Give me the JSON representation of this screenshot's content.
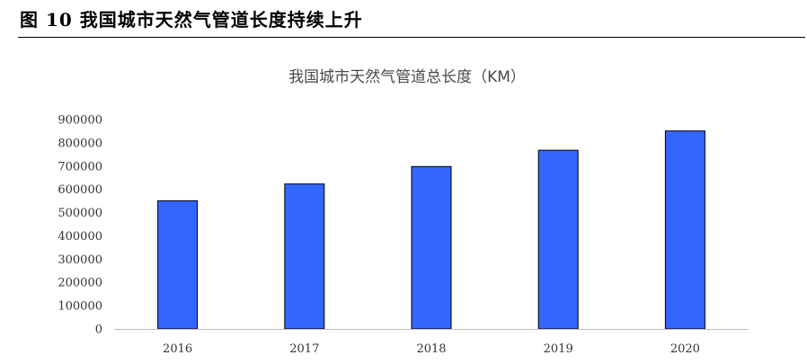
{
  "figure": {
    "caption": "图 10 我国城市天然气管道长度持续上升"
  },
  "colors": {
    "bar": "#3366FF",
    "axis": "#bfbfbf",
    "text": "#333333"
  },
  "chart_data": {
    "type": "bar",
    "title": "我国城市天然气管道总长度（KM）",
    "xlabel": "",
    "ylabel": "",
    "categories": [
      "2016",
      "2017",
      "2018",
      "2019",
      "2020"
    ],
    "values": [
      551000,
      623000,
      698000,
      768000,
      851000
    ],
    "ylim": [
      0,
      900000
    ],
    "yticks": [
      "0",
      "100000",
      "200000",
      "300000",
      "400000",
      "500000",
      "600000",
      "700000",
      "800000",
      "900000"
    ],
    "grid": false,
    "legend": "none"
  }
}
